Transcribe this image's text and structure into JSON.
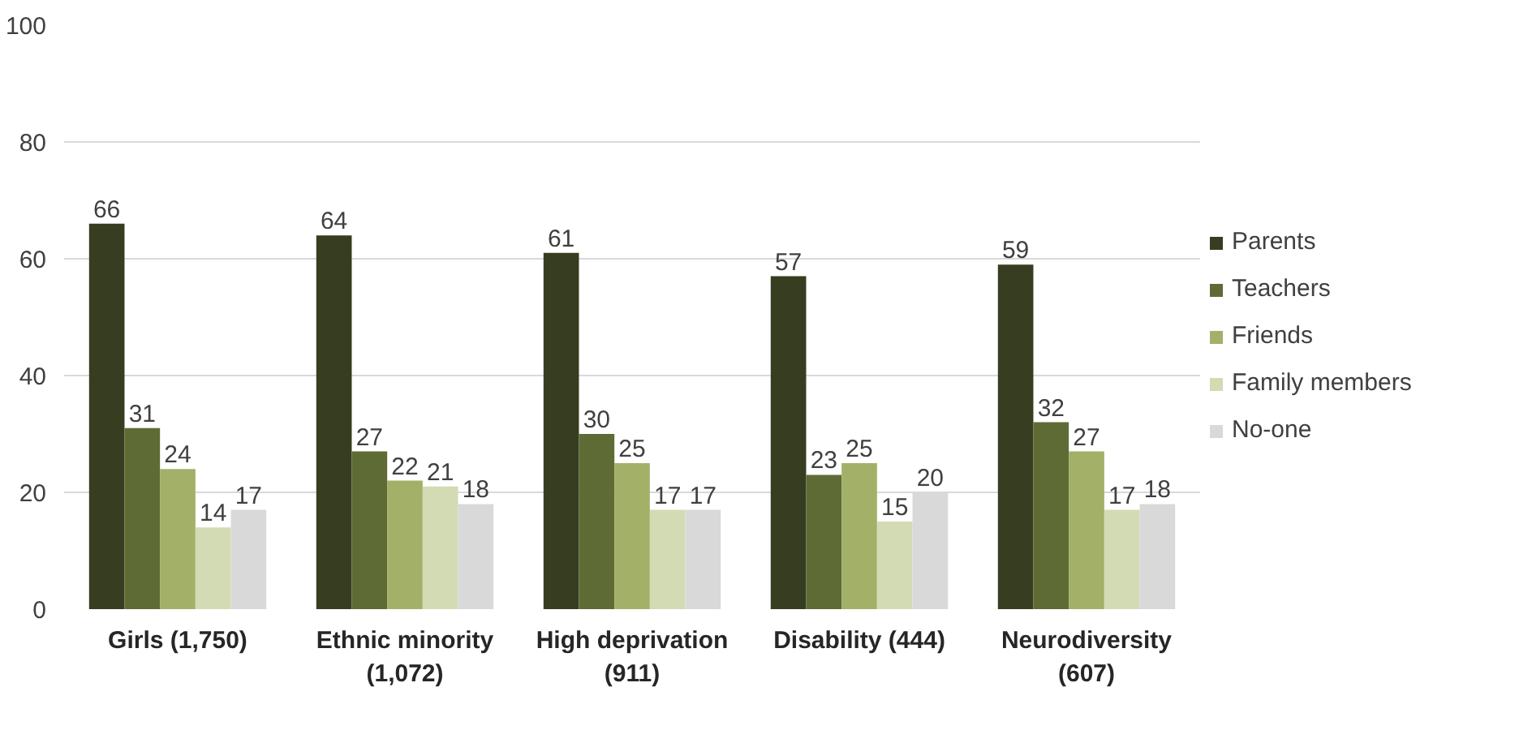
{
  "chart_data": {
    "type": "bar",
    "categories": [
      "Girls (1,750)",
      "Ethnic minority (1,072)",
      "High deprivation (911)",
      "Disability (444)",
      "Neurodiversity (607)"
    ],
    "series": [
      {
        "name": "Parents",
        "color": "#373d20",
        "values": [
          66,
          64,
          61,
          57,
          59
        ]
      },
      {
        "name": "Teachers",
        "color": "#5f6b35",
        "values": [
          31,
          27,
          30,
          23,
          32
        ]
      },
      {
        "name": "Friends",
        "color": "#a3b068",
        "values": [
          24,
          22,
          25,
          25,
          27
        ]
      },
      {
        "name": "Family members",
        "color": "#d3dbb4",
        "values": [
          14,
          21,
          17,
          15,
          17
        ]
      },
      {
        "name": "No-one",
        "color": "#d9d9d9",
        "values": [
          17,
          18,
          17,
          20,
          18
        ]
      }
    ],
    "ylim": [
      0,
      100
    ],
    "yticks": [
      0,
      20,
      40,
      60,
      80,
      100
    ],
    "grid": "y",
    "legend": "right",
    "data_labels": true
  }
}
